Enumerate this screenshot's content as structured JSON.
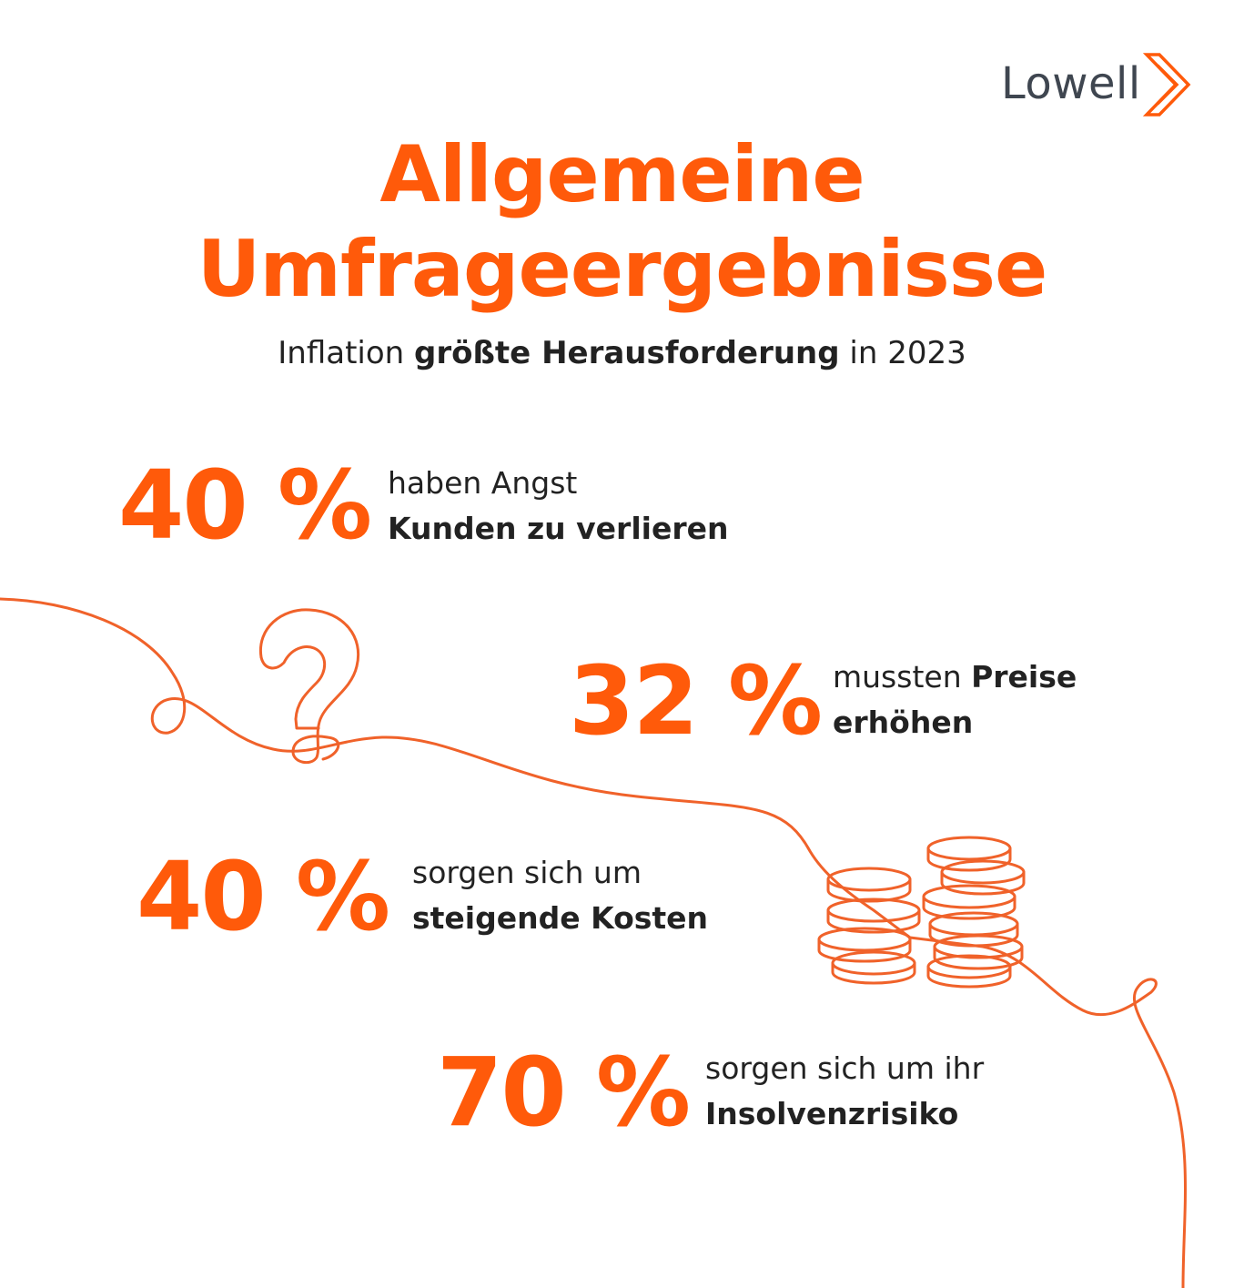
{
  "brand": {
    "name": "Lowell",
    "accent_color": "#ff5a0a",
    "text_color": "#3f4650"
  },
  "title": {
    "line1": "Allgemeine",
    "line2": "Umfrageergebnisse"
  },
  "subtitle": {
    "part1": "Inflation ",
    "part2_bold": "größte Herausforderung",
    "part3": " in 2023"
  },
  "stats": [
    {
      "value": "40 %",
      "line1": "haben Angst",
      "line2_bold": "Kunden zu verlieren"
    },
    {
      "value": "32 %",
      "line1_pre": "mussten ",
      "line1_bold": "Preise",
      "line2_bold": "erhöhen"
    },
    {
      "value": "40 %",
      "line1": "sorgen sich um",
      "line2_bold": "steigende Kosten"
    },
    {
      "value": "70 %",
      "line1": "sorgen sich um ihr",
      "line2_bold": "Insolvenzrisiko"
    }
  ],
  "decorations": {
    "curve": "orange-line-icon",
    "question": "question-mark-icon",
    "coins": "coin-stack-icon"
  }
}
